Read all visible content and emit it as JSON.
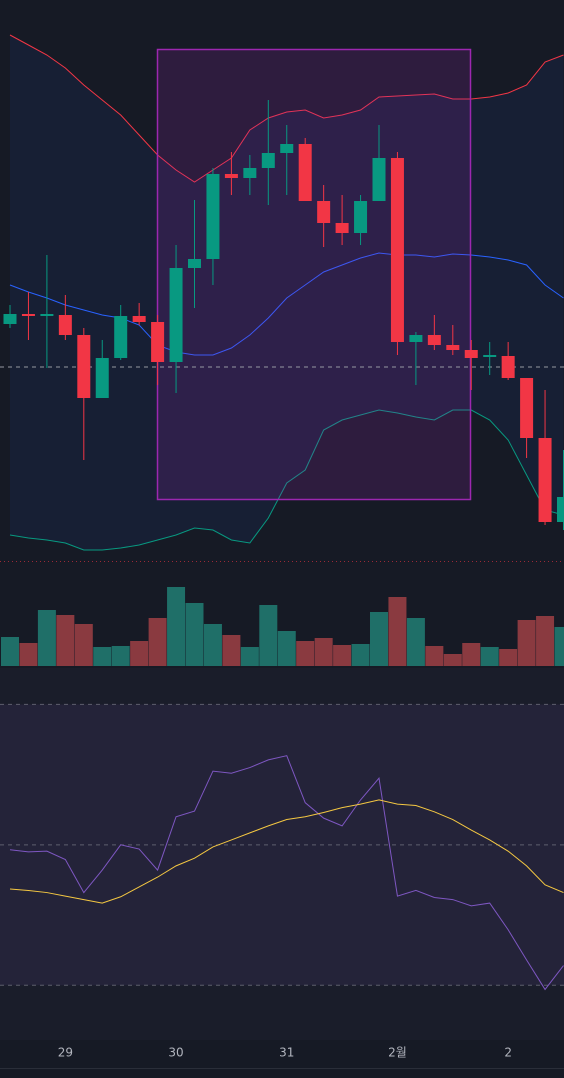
{
  "chart_data": [
    {
      "type": "candlestick",
      "categories": [
        null,
        null,
        null,
        "29",
        null,
        null,
        null,
        null,
        null,
        "30",
        null,
        null,
        null,
        null,
        null,
        "31",
        null,
        null,
        null,
        null,
        null,
        "2월",
        null,
        null,
        null,
        null,
        null,
        "2",
        null,
        null,
        null
      ],
      "open": [
        276,
        286,
        284,
        285,
        265,
        202,
        242,
        284,
        278,
        238,
        332,
        341,
        426,
        422,
        432,
        447,
        456,
        399,
        377,
        367,
        399,
        442,
        258,
        265,
        255,
        250,
        243,
        244,
        222,
        162,
        78
      ],
      "high": [
        295,
        308,
        345,
        305,
        272,
        260,
        295,
        297,
        285,
        355,
        400,
        432,
        448,
        445,
        500,
        475,
        462,
        415,
        405,
        405,
        475,
        448,
        268,
        285,
        275,
        260,
        258,
        258,
        222,
        210,
        150
      ],
      "low": [
        272,
        260,
        232,
        260,
        140,
        202,
        240,
        275,
        215,
        207,
        292,
        315,
        405,
        405,
        395,
        405,
        399,
        353,
        355,
        355,
        399,
        245,
        215,
        250,
        245,
        210,
        225,
        220,
        142,
        75,
        70
      ],
      "close": [
        286,
        284,
        286,
        265,
        202,
        242,
        284,
        278,
        238,
        332,
        341,
        426,
        422,
        432,
        447,
        456,
        399,
        377,
        367,
        399,
        442,
        258,
        265,
        255,
        250,
        242,
        245,
        222,
        162,
        78,
        103
      ],
      "up_color": "#089981",
      "down_color": "#f23645",
      "overlays": [
        {
          "color": "#f23645",
          "values": [
            565,
            555,
            545,
            532,
            515,
            500,
            485,
            465,
            445,
            430,
            418,
            430,
            442,
            470,
            482,
            488,
            490,
            482,
            485,
            490,
            503,
            504,
            505,
            506,
            501,
            501,
            503,
            507,
            515,
            538,
            545
          ]
        },
        {
          "color": "#2962ff",
          "values": [
            315,
            308,
            302,
            295,
            290,
            285,
            282,
            275,
            255,
            248,
            245,
            245,
            252,
            265,
            282,
            302,
            315,
            328,
            335,
            342,
            347,
            345,
            345,
            343,
            346,
            345,
            343,
            340,
            335,
            315,
            302
          ]
        },
        {
          "color": "#089981",
          "values": [
            65,
            62,
            60,
            57,
            50,
            50,
            52,
            55,
            60,
            65,
            72,
            70,
            60,
            57,
            82,
            117,
            130,
            170,
            180,
            185,
            190,
            187,
            183,
            180,
            190,
            190,
            180,
            160,
            125,
            90,
            85
          ]
        }
      ],
      "price_line": 233,
      "ylim": [
        40,
        600
      ]
    },
    {
      "type": "bar",
      "values": [
        29,
        23,
        56,
        51,
        42,
        19,
        20,
        25,
        48,
        79,
        63,
        42,
        31,
        19,
        61,
        35,
        25,
        28,
        21,
        22,
        54,
        69,
        48,
        20,
        12,
        23,
        19,
        17,
        46,
        50,
        39
      ],
      "up_color": "#1f6f68",
      "down_color": "#8a3a40",
      "ylim": [
        0,
        96
      ]
    },
    {
      "type": "line",
      "series": [
        {
          "color": "#7e57c2",
          "values": [
            49.3,
            49.0,
            49.1,
            47.9,
            43.2,
            46.4,
            50.0,
            49.4,
            46.4,
            54.0,
            54.8,
            60.5,
            60.2,
            61.0,
            62.1,
            62.7,
            56.0,
            53.8,
            52.7,
            56.4,
            59.5,
            42.7,
            43.5,
            42.5,
            42.2,
            41.3,
            41.7,
            37.9,
            33.6,
            29.4,
            32.8
          ]
        },
        {
          "color": "#f5c842",
          "values": [
            43.7,
            43.5,
            43.2,
            42.7,
            42.2,
            41.7,
            42.6,
            44.0,
            45.4,
            47.0,
            48.1,
            49.7,
            50.7,
            51.7,
            52.7,
            53.6,
            54.0,
            54.6,
            55.3,
            55.8,
            56.4,
            55.8,
            55.6,
            54.7,
            53.6,
            52.1,
            50.7,
            49.1,
            47.0,
            44.3,
            43.2
          ]
        }
      ],
      "ylim": [
        22.2,
        74.9
      ],
      "yticks": [
        70,
        50,
        30
      ]
    }
  ]
}
